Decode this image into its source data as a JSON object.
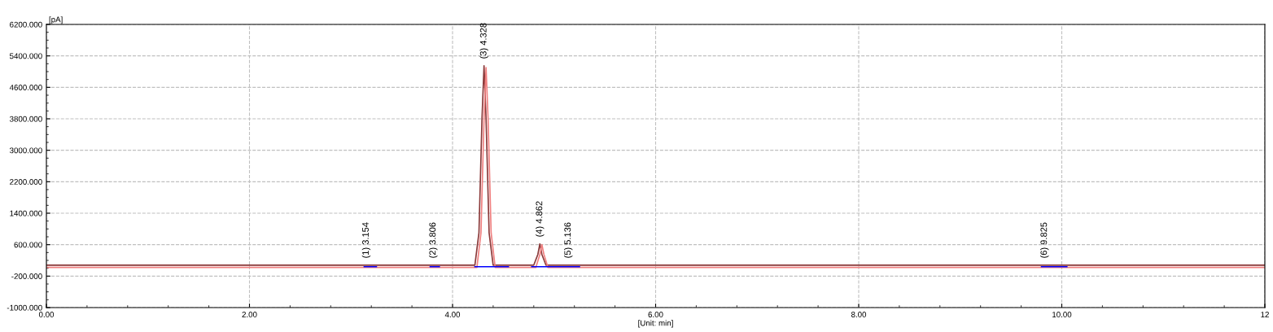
{
  "chart_data": {
    "type": "line",
    "xlabel": "[Unit: min]",
    "ylabel": "[pA]",
    "xlim": [
      0,
      12
    ],
    "ylim": [
      -1000,
      6200
    ],
    "xticks": [
      {
        "value": 0,
        "label": "0.00"
      },
      {
        "value": 2,
        "label": "2.00"
      },
      {
        "value": 4,
        "label": "4.00"
      },
      {
        "value": 6,
        "label": "6.00"
      },
      {
        "value": 8,
        "label": "8.00"
      },
      {
        "value": 10,
        "label": "10.00"
      },
      {
        "value": 12,
        "label": "12"
      }
    ],
    "yticks": [
      {
        "value": -1000,
        "label": "-1000.000"
      },
      {
        "value": -200,
        "label": "-200.000"
      },
      {
        "value": 600,
        "label": "600.000"
      },
      {
        "value": 1400,
        "label": "1400.000"
      },
      {
        "value": 2200,
        "label": "2200.000"
      },
      {
        "value": 3000,
        "label": "3000.000"
      },
      {
        "value": 3800,
        "label": "3800.000"
      },
      {
        "value": 4600,
        "label": "4600.000"
      },
      {
        "value": 5400,
        "label": "5400.000"
      },
      {
        "value": 6200,
        "label": "6200.000"
      }
    ],
    "grid": true,
    "line_style": "solid",
    "marker": "none",
    "series": [
      {
        "color": "#8b3a3a",
        "x": [
          0,
          4.22,
          4.26,
          4.29,
          4.31,
          4.33,
          4.36,
          4.4,
          4.8,
          4.84,
          4.86,
          4.88,
          4.92,
          12
        ],
        "values": [
          80,
          80,
          900,
          3800,
          5150,
          3800,
          900,
          80,
          80,
          350,
          620,
          350,
          80,
          80
        ]
      },
      {
        "color": "#f08080",
        "x": [
          0,
          4.24,
          4.28,
          4.31,
          4.33,
          4.35,
          4.38,
          4.42,
          4.82,
          4.86,
          4.88,
          4.9,
          4.94,
          12
        ],
        "values": [
          20,
          20,
          900,
          3800,
          5100,
          3800,
          900,
          20,
          20,
          350,
          600,
          350,
          20,
          20
        ]
      },
      {
        "color": "#0000ff",
        "x": [
          3.13,
          3.25,
          3.26,
          3.78,
          3.87,
          3.88,
          4.22,
          4.55,
          4.56,
          4.78,
          5.25,
          5.26,
          9.8,
          10.05
        ],
        "values": [
          40,
          40,
          null,
          40,
          40,
          null,
          40,
          40,
          null,
          40,
          40,
          null,
          40,
          40
        ]
      }
    ],
    "annotations": [
      {
        "text": "(1) 3.154",
        "x": 3.15,
        "y": 80
      },
      {
        "text": "(2) 3.806",
        "x": 3.81,
        "y": 80
      },
      {
        "text": "(3) 4.328",
        "x": 4.31,
        "y": 5150
      },
      {
        "text": "(4) 4.862",
        "x": 4.86,
        "y": 620
      },
      {
        "text": "(5) 5.136",
        "x": 5.14,
        "y": 80
      },
      {
        "text": "(6) 9.825",
        "x": 9.83,
        "y": 80
      }
    ]
  }
}
